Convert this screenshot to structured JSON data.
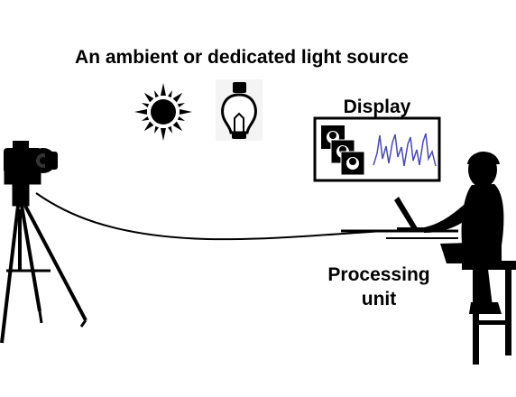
{
  "labels": {
    "light_source": "An ambient or dedicated light source",
    "display": "Display",
    "processing_line1": "Processing",
    "processing_line2": "unit"
  },
  "icons": {
    "sun": "sun-icon",
    "bulb": "light-bulb-icon",
    "camera": "camera-icon",
    "tripod": "tripod-icon",
    "person": "seated-person-icon",
    "laptop": "laptop-icon",
    "signal": "waveform-signal"
  },
  "colors": {
    "ink": "#000000",
    "signal": "#4a4ab0",
    "background": "#ffffff"
  }
}
